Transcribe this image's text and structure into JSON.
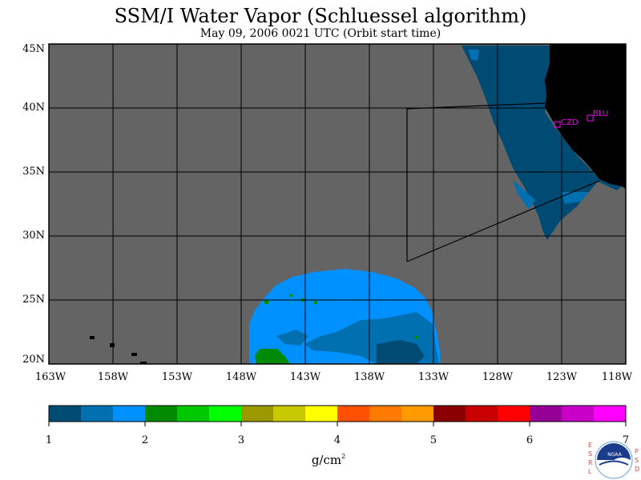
{
  "title": "SSM/I Water Vapor (Schluessel algorithm)",
  "subtitle": "May 09, 2006  0021 UTC  (Orbit start time)",
  "lat_labels": [
    "45N",
    "40N",
    "35N",
    "30N",
    "25N",
    "20N"
  ],
  "lon_labels": [
    "163W",
    "158W",
    "153W",
    "148W",
    "143W",
    "138W",
    "133W",
    "128W",
    "123W",
    "118W"
  ],
  "colorbar": {
    "ticks": [
      "1",
      "2",
      "3",
      "4",
      "5",
      "6",
      "7"
    ],
    "unit": "g/cm",
    "unit_exponent": "2",
    "colors": [
      "#004b73",
      "#0070b0",
      "#0090ff",
      "#008a00",
      "#00c800",
      "#00ff00",
      "#9a9a00",
      "#c8c800",
      "#ffff00",
      "#ff5000",
      "#ff7a00",
      "#ff9a00",
      "#8a0000",
      "#c80000",
      "#ff0000",
      "#960096",
      "#c800c8",
      "#ff00ff"
    ]
  },
  "stations": [
    {
      "label": "CZD"
    },
    {
      "label": "BLU"
    }
  ],
  "logo": {
    "text": "NOAA",
    "left_letters": [
      "E",
      "S",
      "R",
      "L"
    ],
    "right_letters": [
      "P",
      "S",
      "D"
    ]
  },
  "colors": {
    "background_no_data": "#646464",
    "land": "#000000",
    "grid": "#000000",
    "marker": "#ff00ff"
  }
}
